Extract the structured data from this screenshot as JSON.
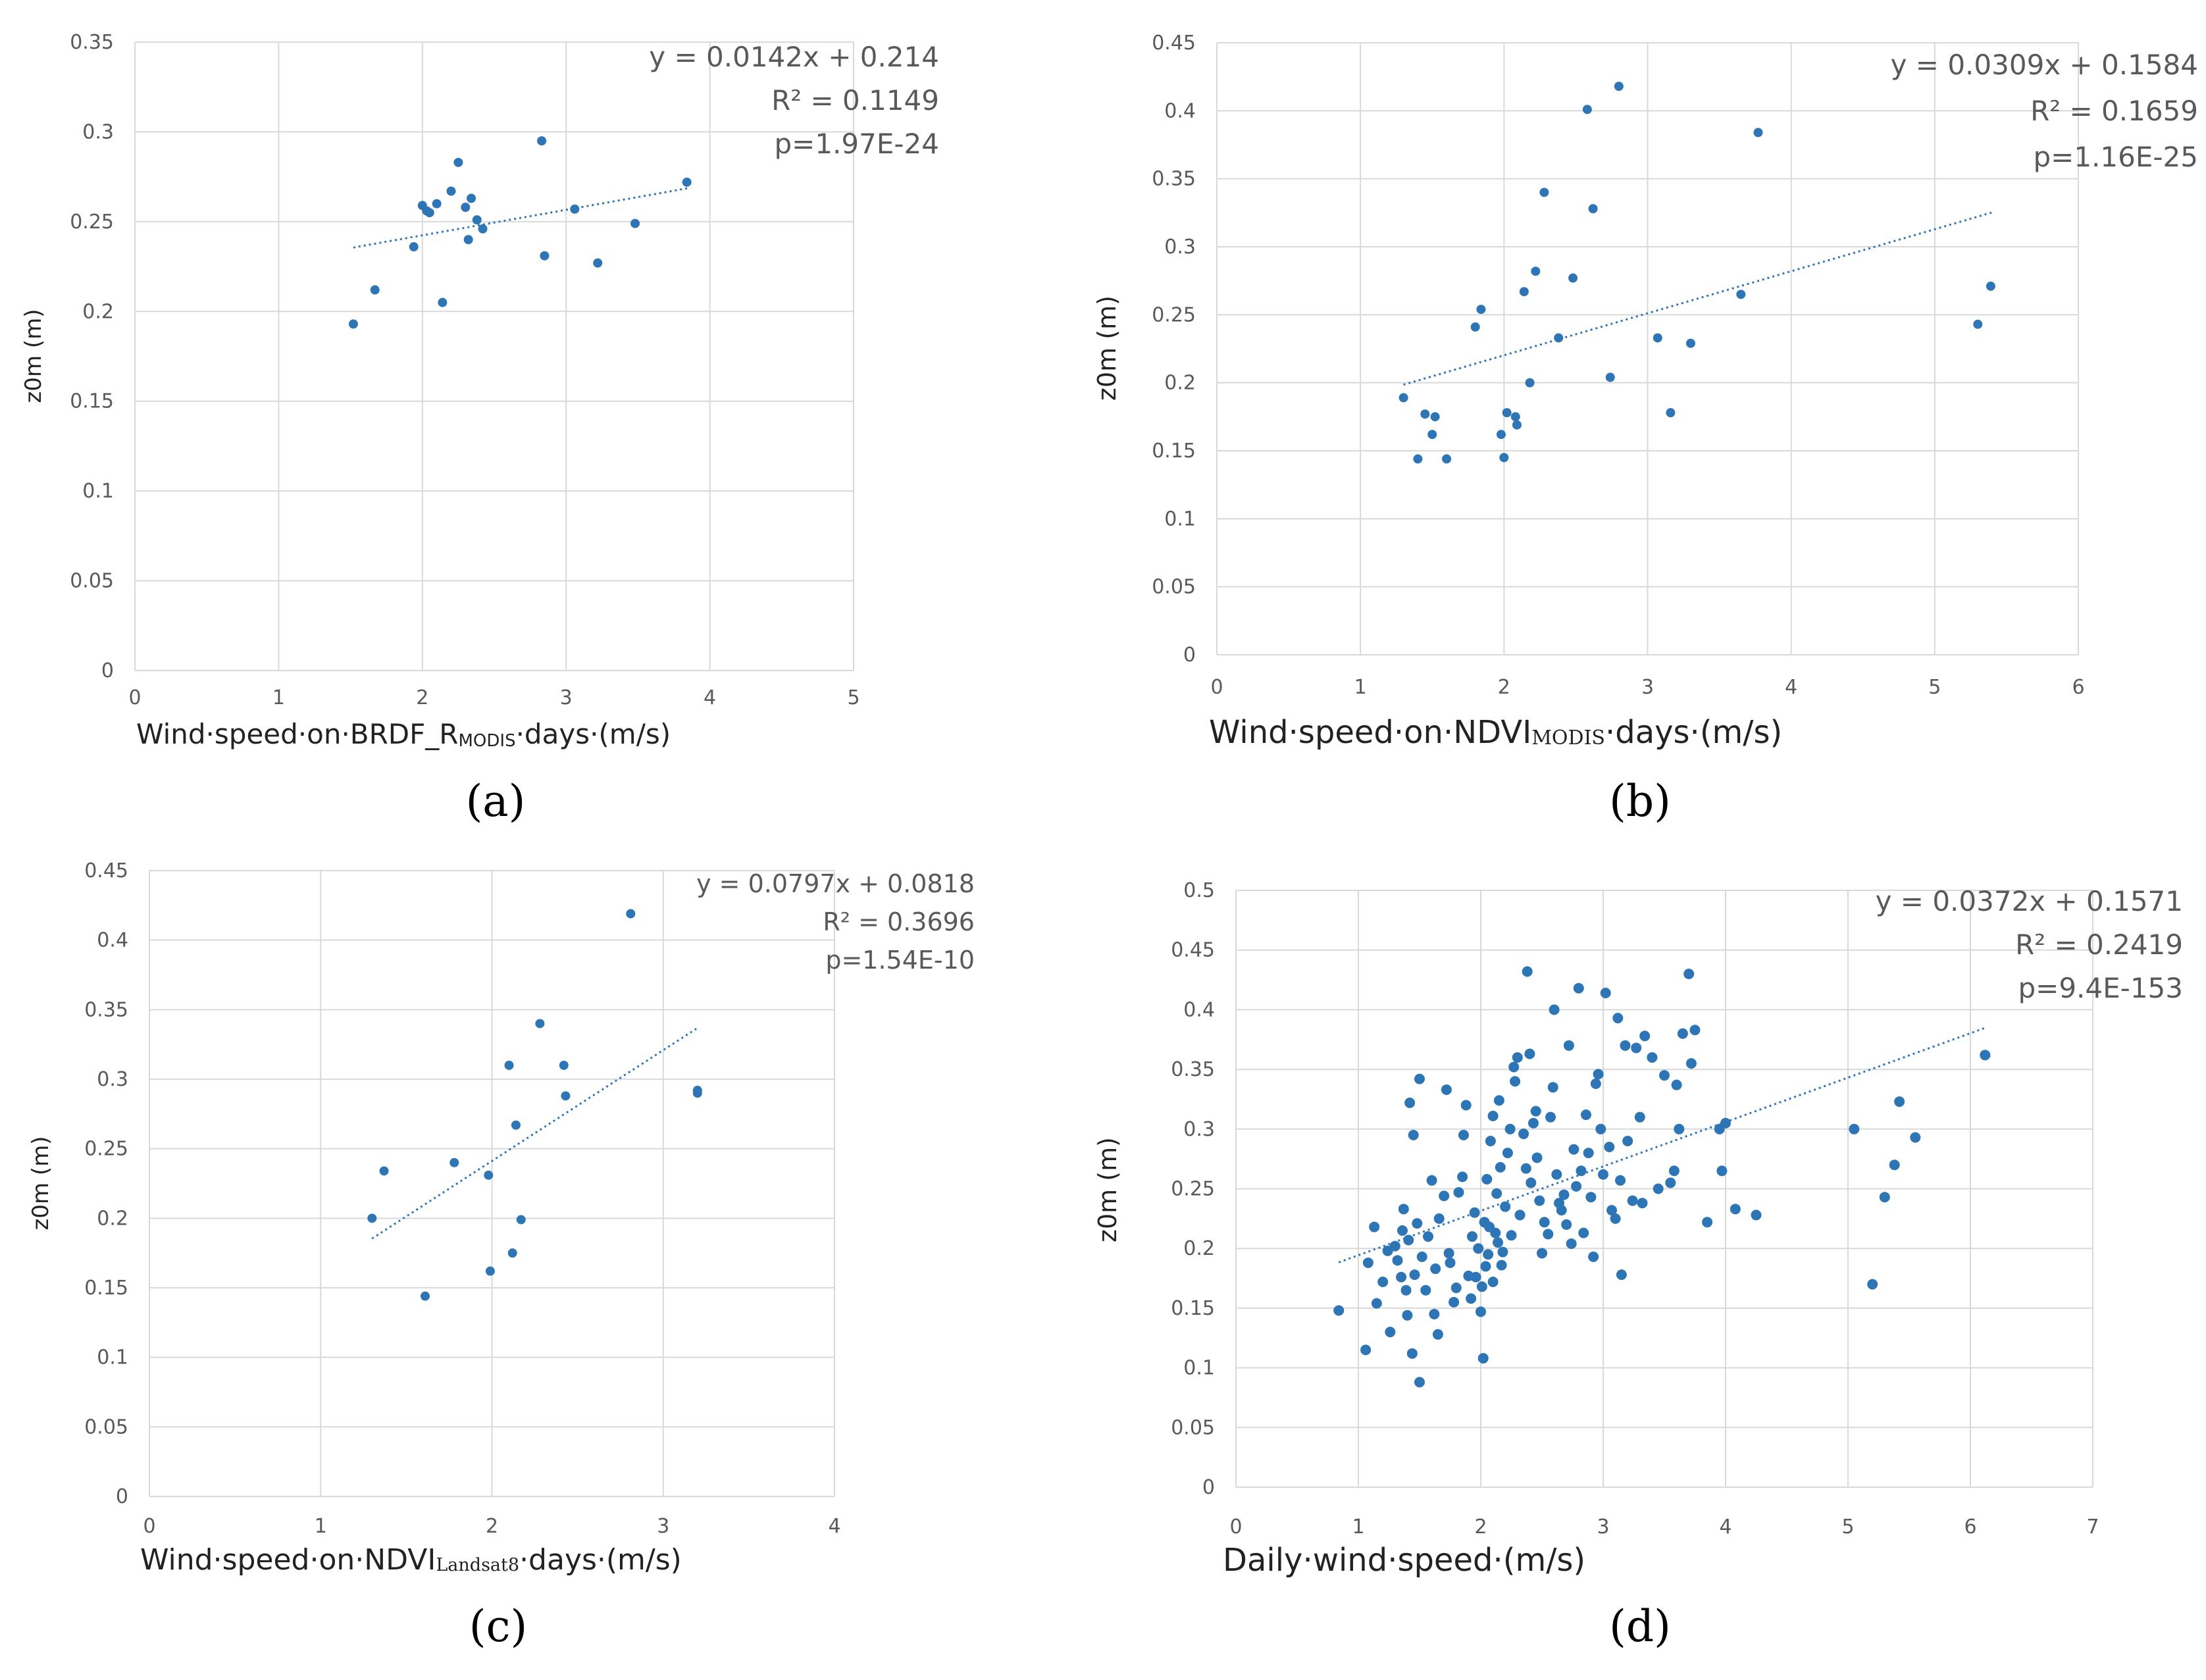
{
  "colors": {
    "point": "#2e75b6",
    "trend": "#2e75b6",
    "grid": "#d9d9d9",
    "text": "#595959"
  },
  "chart_data": [
    {
      "id": "a",
      "type": "scatter",
      "panel_label": "(a)",
      "ylabel": "z0m (m)",
      "xlabel": {
        "parts": [
          {
            "text": "Wind·speed·on·BRDF_R",
            "style": "normal"
          },
          {
            "text": "MODIS",
            "style": "sub"
          },
          {
            "text": "·days·(m/s)",
            "style": "normal"
          }
        ]
      },
      "xlim": [
        0,
        5
      ],
      "ylim": [
        0,
        0.35
      ],
      "xticks": [
        0,
        1,
        2,
        3,
        4,
        5
      ],
      "yticks": [
        0,
        0.05,
        0.1,
        0.15,
        0.2,
        0.25,
        0.3,
        0.35
      ],
      "xtick_labels": [
        "0",
        "1",
        "2",
        "3",
        "4",
        "5"
      ],
      "ytick_labels": [
        "0",
        "0.05",
        "0.1",
        "0.15",
        "0.2",
        "0.25",
        "0.3",
        "0.35"
      ],
      "equation": "y = 0.0142x + 0.214",
      "r2": "R² = 0.1149",
      "p": "p=1.97E-24",
      "trend": {
        "slope": 0.0142,
        "intercept": 0.214,
        "x_range": [
          1.52,
          3.85
        ]
      },
      "points": [
        [
          1.52,
          0.193
        ],
        [
          1.67,
          0.212
        ],
        [
          1.94,
          0.236
        ],
        [
          2.0,
          0.259
        ],
        [
          2.03,
          0.256
        ],
        [
          2.05,
          0.255
        ],
        [
          2.1,
          0.26
        ],
        [
          2.14,
          0.205
        ],
        [
          2.2,
          0.267
        ],
        [
          2.25,
          0.283
        ],
        [
          2.3,
          0.258
        ],
        [
          2.32,
          0.24
        ],
        [
          2.34,
          0.263
        ],
        [
          2.38,
          0.251
        ],
        [
          2.42,
          0.246
        ],
        [
          2.83,
          0.295
        ],
        [
          2.85,
          0.231
        ],
        [
          3.06,
          0.257
        ],
        [
          3.22,
          0.227
        ],
        [
          3.48,
          0.249
        ],
        [
          3.84,
          0.272
        ]
      ]
    },
    {
      "id": "b",
      "type": "scatter",
      "panel_label": "(b)",
      "ylabel": "z0m (m)",
      "xlabel": {
        "parts": [
          {
            "text": "Wind·speed·on·NDVI",
            "style": "normal"
          },
          {
            "text": "MODIS",
            "style": "serif-small"
          },
          {
            "text": "·days·(m/s)",
            "style": "normal"
          }
        ]
      },
      "xlim": [
        0,
        6
      ],
      "ylim": [
        0,
        0.45
      ],
      "xticks": [
        0,
        1,
        2,
        3,
        4,
        5,
        6
      ],
      "yticks": [
        0,
        0.05,
        0.1,
        0.15,
        0.2,
        0.25,
        0.3,
        0.35,
        0.4,
        0.45
      ],
      "xtick_labels": [
        "0",
        "1",
        "2",
        "3",
        "4",
        "5",
        "6"
      ],
      "ytick_labels": [
        "0",
        "0.05",
        "0.1",
        "0.15",
        "0.2",
        "0.25",
        "0.3",
        "0.35",
        "0.4",
        "0.45"
      ],
      "equation": "y = 0.0309x + 0.1584",
      "r2": "R² = 0.1659",
      "p": "p=1.16E-25",
      "trend": {
        "slope": 0.0309,
        "intercept": 0.1584,
        "x_range": [
          1.3,
          5.4
        ]
      },
      "points": [
        [
          1.3,
          0.189
        ],
        [
          1.4,
          0.144
        ],
        [
          1.45,
          0.177
        ],
        [
          1.5,
          0.162
        ],
        [
          1.52,
          0.175
        ],
        [
          1.6,
          0.144
        ],
        [
          1.8,
          0.241
        ],
        [
          1.84,
          0.254
        ],
        [
          1.98,
          0.162
        ],
        [
          2.0,
          0.145
        ],
        [
          2.02,
          0.178
        ],
        [
          2.08,
          0.175
        ],
        [
          2.09,
          0.169
        ],
        [
          2.14,
          0.267
        ],
        [
          2.18,
          0.2
        ],
        [
          2.22,
          0.282
        ],
        [
          2.28,
          0.34
        ],
        [
          2.38,
          0.233
        ],
        [
          2.48,
          0.277
        ],
        [
          2.58,
          0.401
        ],
        [
          2.62,
          0.328
        ],
        [
          2.74,
          0.204
        ],
        [
          2.8,
          0.418
        ],
        [
          3.07,
          0.233
        ],
        [
          3.16,
          0.178
        ],
        [
          3.3,
          0.229
        ],
        [
          3.65,
          0.265
        ],
        [
          3.77,
          0.384
        ],
        [
          5.3,
          0.243
        ],
        [
          5.39,
          0.271
        ]
      ]
    },
    {
      "id": "c",
      "type": "scatter",
      "panel_label": "(c)",
      "ylabel": "z0m (m)",
      "xlabel": {
        "parts": [
          {
            "text": "Wind·speed·on·NDVI",
            "style": "normal"
          },
          {
            "text": "Landsat8",
            "style": "serif-small"
          },
          {
            "text": "·days·(m/s)",
            "style": "normal"
          }
        ]
      },
      "xlim": [
        0,
        4
      ],
      "ylim": [
        0,
        0.45
      ],
      "xticks": [
        0,
        1,
        2,
        3,
        4
      ],
      "yticks": [
        0,
        0.05,
        0.1,
        0.15,
        0.2,
        0.25,
        0.3,
        0.35,
        0.4,
        0.45
      ],
      "xtick_labels": [
        "0",
        "1",
        "2",
        "3",
        "4"
      ],
      "ytick_labels": [
        "0",
        "0.05",
        "0.1",
        "0.15",
        "0.2",
        "0.25",
        "0.3",
        "0.35",
        "0.4",
        "0.45"
      ],
      "equation": "y = 0.0797x + 0.0818",
      "r2": "R² = 0.3696",
      "p": "p=1.54E-10",
      "trend": {
        "slope": 0.0797,
        "intercept": 0.0818,
        "x_range": [
          1.3,
          3.2
        ]
      },
      "points": [
        [
          1.3,
          0.2
        ],
        [
          1.37,
          0.234
        ],
        [
          1.61,
          0.144
        ],
        [
          1.78,
          0.24
        ],
        [
          1.98,
          0.231
        ],
        [
          1.99,
          0.162
        ],
        [
          2.1,
          0.31
        ],
        [
          2.12,
          0.175
        ],
        [
          2.14,
          0.267
        ],
        [
          2.17,
          0.199
        ],
        [
          2.28,
          0.34
        ],
        [
          2.42,
          0.31
        ],
        [
          2.43,
          0.288
        ],
        [
          2.81,
          0.419
        ],
        [
          3.2,
          0.29
        ],
        [
          3.2,
          0.292
        ]
      ]
    },
    {
      "id": "d",
      "type": "scatter",
      "panel_label": "(d)",
      "ylabel": "z0m (m)",
      "xlabel": {
        "parts": [
          {
            "text": "Daily·wind·speed·(m/s)",
            "style": "normal"
          }
        ]
      },
      "xlim": [
        0,
        7
      ],
      "ylim": [
        0,
        0.5
      ],
      "xticks": [
        0,
        1,
        2,
        3,
        4,
        5,
        6,
        7
      ],
      "yticks": [
        0,
        0.05,
        0.1,
        0.15,
        0.2,
        0.25,
        0.3,
        0.35,
        0.4,
        0.45,
        0.5
      ],
      "xtick_labels": [
        "0",
        "1",
        "2",
        "3",
        "4",
        "5",
        "6",
        "7"
      ],
      "ytick_labels": [
        "0",
        "0.05",
        "0.1",
        "0.15",
        "0.2",
        "0.25",
        "0.3",
        "0.35",
        "0.4",
        "0.45",
        "0.5"
      ],
      "equation": "y = 0.0372x + 0.1571",
      "r2": "R² = 0.2419",
      "p": "p=9.4E-153",
      "trend": {
        "slope": 0.0372,
        "intercept": 0.1571,
        "x_range": [
          0.84,
          6.12
        ]
      },
      "points": [
        [
          0.84,
          0.148
        ],
        [
          1.06,
          0.115
        ],
        [
          1.08,
          0.188
        ],
        [
          1.13,
          0.218
        ],
        [
          1.15,
          0.154
        ],
        [
          1.2,
          0.172
        ],
        [
          1.24,
          0.198
        ],
        [
          1.26,
          0.13
        ],
        [
          1.3,
          0.202
        ],
        [
          1.32,
          0.19
        ],
        [
          1.35,
          0.176
        ],
        [
          1.36,
          0.215
        ],
        [
          1.37,
          0.233
        ],
        [
          1.39,
          0.165
        ],
        [
          1.4,
          0.144
        ],
        [
          1.41,
          0.207
        ],
        [
          1.42,
          0.322
        ],
        [
          1.44,
          0.112
        ],
        [
          1.45,
          0.295
        ],
        [
          1.46,
          0.178
        ],
        [
          1.48,
          0.221
        ],
        [
          1.5,
          0.342
        ],
        [
          1.5,
          0.088
        ],
        [
          1.52,
          0.193
        ],
        [
          1.55,
          0.165
        ],
        [
          1.57,
          0.21
        ],
        [
          1.6,
          0.257
        ],
        [
          1.62,
          0.145
        ],
        [
          1.63,
          0.183
        ],
        [
          1.65,
          0.128
        ],
        [
          1.66,
          0.225
        ],
        [
          1.7,
          0.244
        ],
        [
          1.72,
          0.333
        ],
        [
          1.74,
          0.196
        ],
        [
          1.75,
          0.188
        ],
        [
          1.78,
          0.155
        ],
        [
          1.8,
          0.167
        ],
        [
          1.82,
          0.247
        ],
        [
          1.85,
          0.26
        ],
        [
          1.86,
          0.295
        ],
        [
          1.88,
          0.32
        ],
        [
          1.9,
          0.177
        ],
        [
          1.92,
          0.158
        ],
        [
          1.93,
          0.21
        ],
        [
          1.95,
          0.23
        ],
        [
          1.96,
          0.176
        ],
        [
          1.98,
          0.2
        ],
        [
          2.0,
          0.147
        ],
        [
          2.01,
          0.168
        ],
        [
          2.02,
          0.108
        ],
        [
          2.03,
          0.222
        ],
        [
          2.04,
          0.185
        ],
        [
          2.05,
          0.258
        ],
        [
          2.06,
          0.195
        ],
        [
          2.07,
          0.218
        ],
        [
          2.08,
          0.29
        ],
        [
          2.1,
          0.311
        ],
        [
          2.1,
          0.172
        ],
        [
          2.12,
          0.213
        ],
        [
          2.13,
          0.246
        ],
        [
          2.14,
          0.205
        ],
        [
          2.15,
          0.324
        ],
        [
          2.16,
          0.268
        ],
        [
          2.17,
          0.186
        ],
        [
          2.18,
          0.197
        ],
        [
          2.2,
          0.235
        ],
        [
          2.22,
          0.28
        ],
        [
          2.24,
          0.3
        ],
        [
          2.25,
          0.211
        ],
        [
          2.27,
          0.352
        ],
        [
          2.28,
          0.34
        ],
        [
          2.3,
          0.36
        ],
        [
          2.32,
          0.228
        ],
        [
          2.35,
          0.296
        ],
        [
          2.37,
          0.267
        ],
        [
          2.38,
          0.432
        ],
        [
          2.4,
          0.363
        ],
        [
          2.41,
          0.255
        ],
        [
          2.43,
          0.305
        ],
        [
          2.45,
          0.315
        ],
        [
          2.46,
          0.276
        ],
        [
          2.48,
          0.24
        ],
        [
          2.5,
          0.196
        ],
        [
          2.52,
          0.222
        ],
        [
          2.55,
          0.212
        ],
        [
          2.57,
          0.31
        ],
        [
          2.59,
          0.335
        ],
        [
          2.6,
          0.4
        ],
        [
          2.62,
          0.262
        ],
        [
          2.64,
          0.238
        ],
        [
          2.66,
          0.232
        ],
        [
          2.68,
          0.245
        ],
        [
          2.7,
          0.22
        ],
        [
          2.72,
          0.37
        ],
        [
          2.74,
          0.204
        ],
        [
          2.76,
          0.283
        ],
        [
          2.78,
          0.252
        ],
        [
          2.8,
          0.418
        ],
        [
          2.82,
          0.265
        ],
        [
          2.84,
          0.213
        ],
        [
          2.86,
          0.312
        ],
        [
          2.88,
          0.28
        ],
        [
          2.9,
          0.243
        ],
        [
          2.92,
          0.193
        ],
        [
          2.94,
          0.338
        ],
        [
          2.96,
          0.346
        ],
        [
          2.98,
          0.3
        ],
        [
          3.0,
          0.262
        ],
        [
          3.02,
          0.414
        ],
        [
          3.05,
          0.285
        ],
        [
          3.07,
          0.232
        ],
        [
          3.1,
          0.225
        ],
        [
          3.12,
          0.393
        ],
        [
          3.14,
          0.257
        ],
        [
          3.15,
          0.178
        ],
        [
          3.18,
          0.37
        ],
        [
          3.2,
          0.29
        ],
        [
          3.24,
          0.24
        ],
        [
          3.27,
          0.368
        ],
        [
          3.3,
          0.31
        ],
        [
          3.32,
          0.238
        ],
        [
          3.34,
          0.378
        ],
        [
          3.4,
          0.36
        ],
        [
          3.45,
          0.25
        ],
        [
          3.5,
          0.345
        ],
        [
          3.55,
          0.255
        ],
        [
          3.58,
          0.265
        ],
        [
          3.6,
          0.337
        ],
        [
          3.62,
          0.3
        ],
        [
          3.65,
          0.38
        ],
        [
          3.7,
          0.43
        ],
        [
          3.72,
          0.355
        ],
        [
          3.75,
          0.383
        ],
        [
          3.85,
          0.222
        ],
        [
          3.95,
          0.3
        ],
        [
          3.97,
          0.265
        ],
        [
          4.0,
          0.305
        ],
        [
          4.08,
          0.233
        ],
        [
          4.25,
          0.228
        ],
        [
          5.05,
          0.3
        ],
        [
          5.2,
          0.17
        ],
        [
          5.3,
          0.243
        ],
        [
          5.38,
          0.27
        ],
        [
          5.42,
          0.323
        ],
        [
          5.55,
          0.293
        ],
        [
          6.12,
          0.362
        ]
      ]
    }
  ]
}
